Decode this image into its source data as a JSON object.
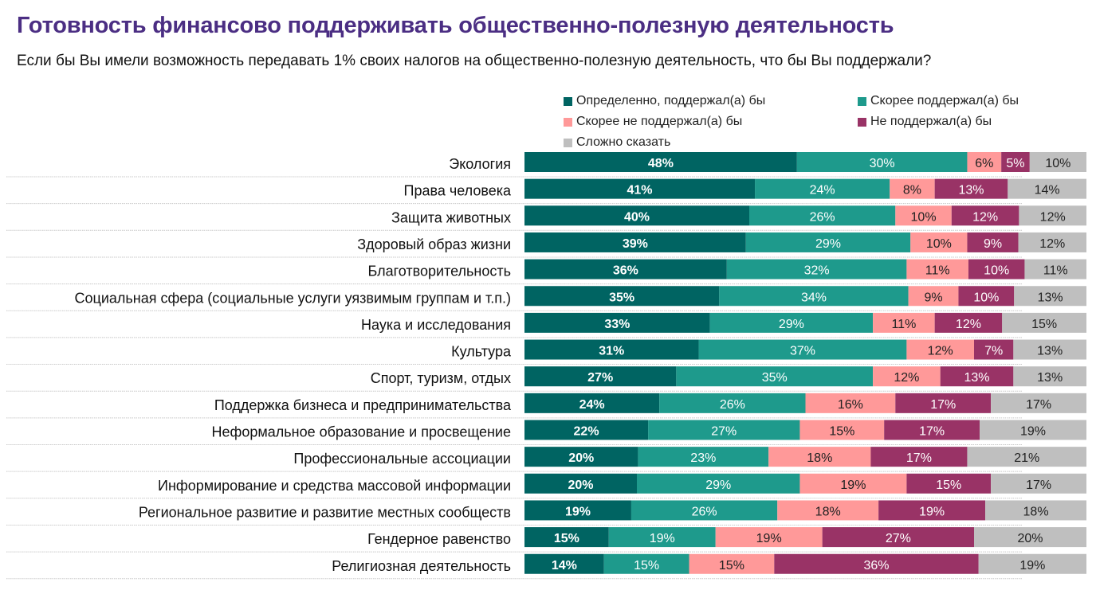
{
  "header": {
    "title": "Готовность финансово поддерживать общественно-полезную деятельность",
    "subtitle": "Если бы Вы имели возможность передавать 1% своих налогов на общественно-полезную деятельность, что бы Вы поддержали?"
  },
  "chart_data": {
    "type": "bar",
    "orientation": "horizontal",
    "stacked": true,
    "title": "Готовность финансово поддерживать общественно-полезную деятельность",
    "subtitle": "Если бы Вы имели возможность передавать 1% своих налогов на общественно-полезную деятельность, что бы Вы поддержали?",
    "xlabel": "",
    "ylabel": "",
    "unit": "%",
    "xlim": [
      0,
      100
    ],
    "legend_position": "top-right",
    "grid": false,
    "categories": [
      "Экология",
      "Права человека",
      "Защита животных",
      "Здоровый образ жизни",
      "Благотворительность",
      "Социальная сфера (социальные услуги уязвимым группам и т.п.)",
      "Наука и  исследования",
      "Культура",
      "Спорт, туризм, отдых",
      "Поддержка бизнеса и предпринимательства",
      "Неформальное образование и просвещение",
      "Профессиональные ассоциации",
      "Информирование и средства массовой информации",
      "Региональное развитие и развитие местных сообществ",
      "Гендерное равенство",
      "Религиозная деятельность"
    ],
    "series": [
      {
        "name": "Определенно, поддержал(а)  бы",
        "color": "#006462",
        "label_color": "#ffffff",
        "label_bold": true,
        "values": [
          48,
          41,
          40,
          39,
          36,
          35,
          33,
          31,
          27,
          24,
          22,
          20,
          20,
          19,
          15,
          14
        ]
      },
      {
        "name": "Скорее поддержал(а)  бы",
        "color": "#1E9A8C",
        "label_color": "#ffffff",
        "label_bold": false,
        "values": [
          30,
          24,
          26,
          29,
          32,
          34,
          29,
          37,
          35,
          26,
          27,
          23,
          29,
          26,
          19,
          15
        ]
      },
      {
        "name": "Скорее не поддержал(а)  бы",
        "color": "#FF9999",
        "label_color": "#222222",
        "label_bold": false,
        "values": [
          6,
          8,
          10,
          10,
          11,
          9,
          11,
          12,
          12,
          16,
          15,
          18,
          19,
          18,
          19,
          15
        ]
      },
      {
        "name": "Не поддержал(а)  бы",
        "color": "#993366",
        "label_color": "#ffffff",
        "label_bold": false,
        "values": [
          5,
          13,
          12,
          9,
          10,
          10,
          12,
          7,
          13,
          17,
          17,
          17,
          15,
          19,
          27,
          36
        ]
      },
      {
        "name": "Сложно сказать",
        "color": "#BFBFBF",
        "label_color": "#222222",
        "label_bold": false,
        "values": [
          10,
          14,
          12,
          12,
          11,
          13,
          15,
          13,
          13,
          17,
          19,
          21,
          17,
          18,
          20,
          19
        ]
      }
    ]
  }
}
